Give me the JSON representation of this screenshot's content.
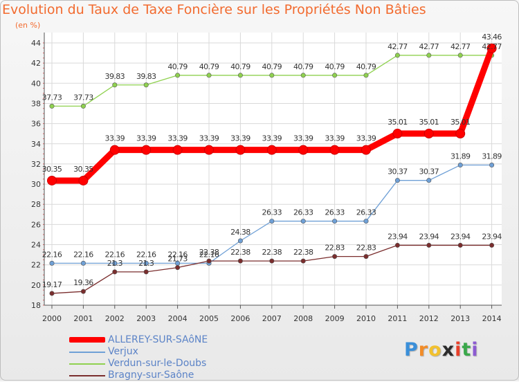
{
  "chart_data": {
    "type": "line",
    "title": "Evolution du Taux de Taxe Foncière sur les Propriétés Non Bâties",
    "ylabel": "(en %)",
    "xlabel": "",
    "ylim": [
      18,
      44
    ],
    "yticks": [
      "18",
      "20",
      "22",
      "24",
      "26",
      "28",
      "30",
      "32",
      "34",
      "36",
      "38",
      "40",
      "42",
      "44"
    ],
    "categories": [
      "2000",
      "2001",
      "2002",
      "2003",
      "2004",
      "2005",
      "2006",
      "2007",
      "2008",
      "2009",
      "2010",
      "2011",
      "2012",
      "2013",
      "2014"
    ],
    "series": [
      {
        "name": "ALLEREY-SUR-SAôNE",
        "color": "#ff0000",
        "values": [
          30.35,
          30.35,
          33.39,
          33.39,
          33.39,
          33.39,
          33.39,
          33.39,
          33.39,
          33.39,
          33.39,
          35.01,
          35.01,
          35.01,
          43.46
        ],
        "labels": [
          "30.35",
          "30.35",
          "33.39",
          "33.39",
          "33.39",
          "33.39",
          "33.39",
          "33.39",
          "33.39",
          "33.39",
          "33.39",
          "35.01",
          "35.01",
          "35.01",
          "43.46"
        ]
      },
      {
        "name": "Verjux",
        "color": "#6fa0d6",
        "values": [
          22.16,
          22.16,
          22.16,
          22.16,
          22.16,
          22.16,
          24.38,
          26.33,
          26.33,
          26.33,
          26.33,
          30.37,
          30.37,
          31.89,
          31.89
        ],
        "labels": [
          "22.16",
          "22.16",
          "22.16",
          "22.16",
          "22.16",
          "22.16",
          "24.38",
          "26.33",
          "26.33",
          "26.33",
          "26.33",
          "30.37",
          "30.37",
          "31.89",
          "31.89"
        ]
      },
      {
        "name": "Verdun-sur-le-Doubs",
        "color": "#8fd14f",
        "values": [
          37.73,
          37.73,
          39.83,
          39.83,
          40.79,
          40.79,
          40.79,
          40.79,
          40.79,
          40.79,
          40.79,
          42.77,
          42.77,
          42.77,
          42.77
        ],
        "labels": [
          "37.73",
          "37.73",
          "39.83",
          "39.83",
          "40.79",
          "40.79",
          "40.79",
          "40.79",
          "40.79",
          "40.79",
          "40.79",
          "42.77",
          "42.77",
          "42.77",
          "42.77"
        ]
      },
      {
        "name": "Bragny-sur-Saône",
        "color": "#7a2d2d",
        "values": [
          19.17,
          19.36,
          21.3,
          21.3,
          21.73,
          22.38,
          22.38,
          22.38,
          22.38,
          22.83,
          22.83,
          23.94,
          23.94,
          23.94,
          23.94
        ],
        "labels": [
          "19.17",
          "19.36",
          "21.3",
          "21.3",
          "21.73",
          "22.38",
          "22.38",
          "22.38",
          "22.38",
          "22.83",
          "22.83",
          "23.94",
          "23.94",
          "23.94",
          "23.94"
        ]
      }
    ],
    "grid": true,
    "legend": "bottom-left"
  },
  "logo": {
    "letters": [
      "P",
      "r",
      "o",
      "x",
      "i",
      "t",
      "i"
    ],
    "colors": [
      "#3a8fd9",
      "#f28c28",
      "#f2c12e",
      "#2b2b2b",
      "#e8402a",
      "#3aa84b",
      "#8c5bd1"
    ]
  }
}
